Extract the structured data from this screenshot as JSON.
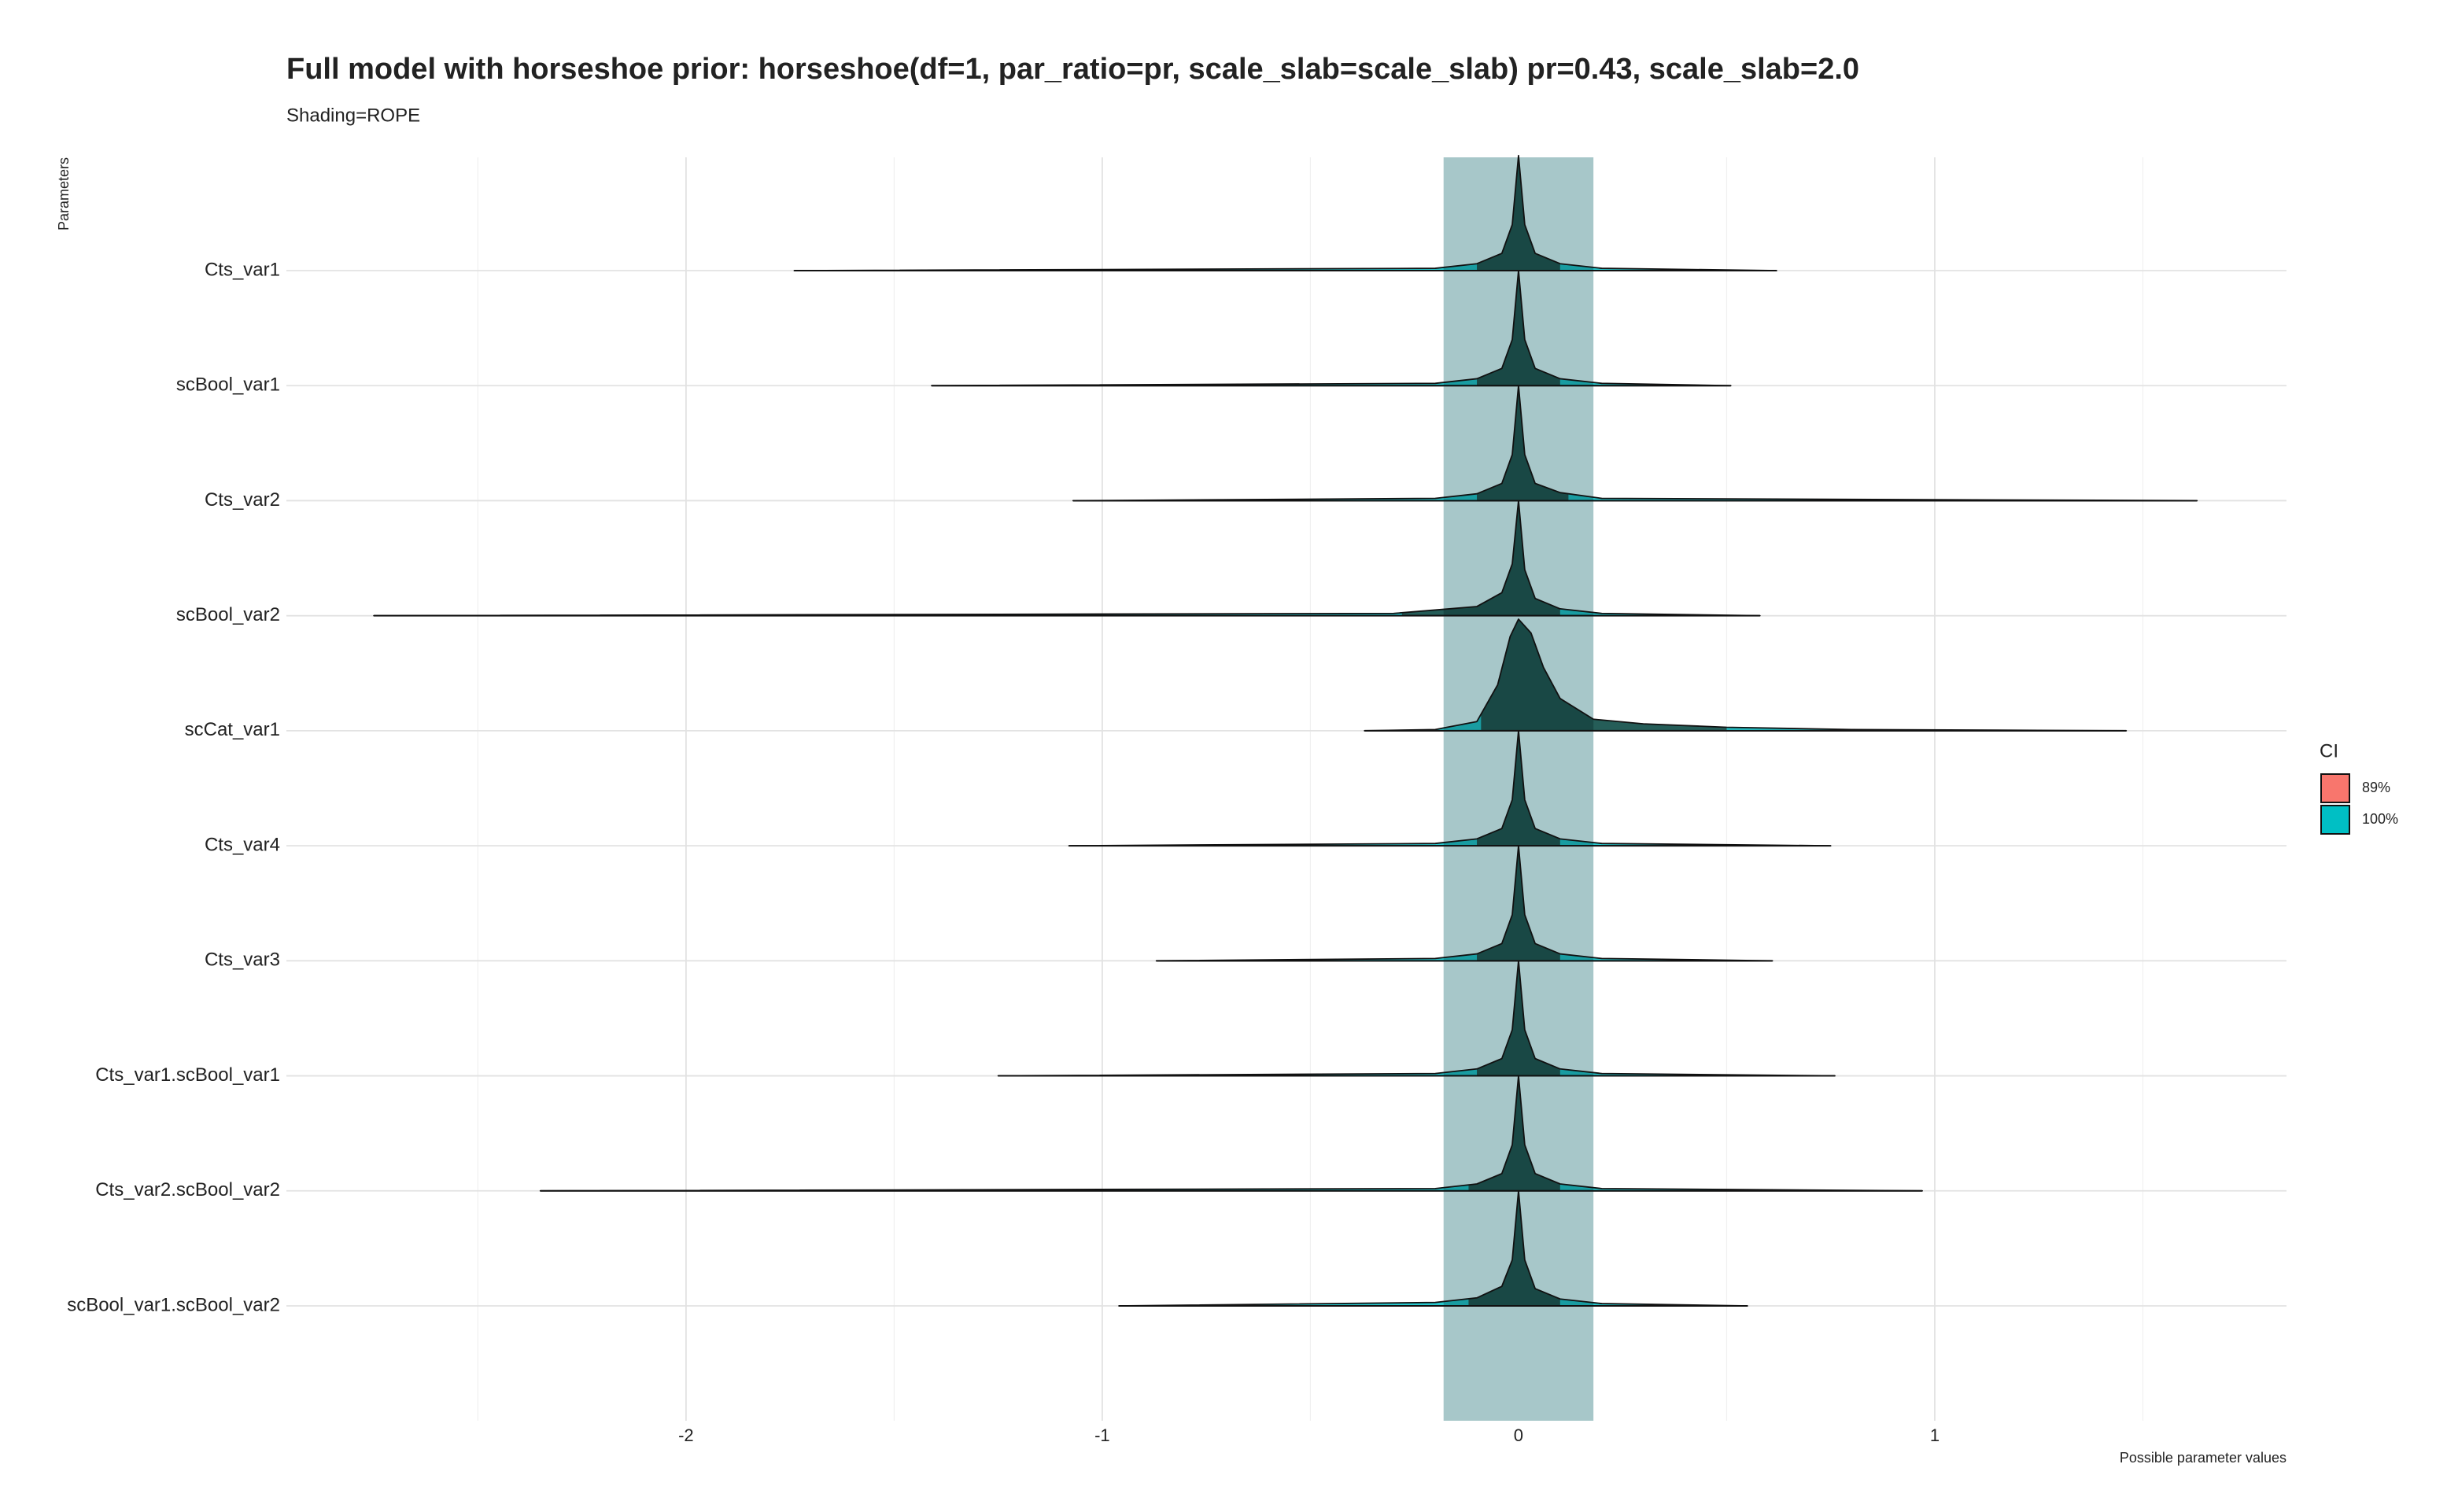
{
  "chart_data": {
    "type": "ridgeline",
    "title": "Full model with horseshoe prior: horseshoe(df=1, par_ratio=pr, scale_slab=scale_slab) pr=0.43, scale_slab=2.0",
    "subtitle": "Shading=ROPE",
    "y_label": "Parameters",
    "x_label": "Possible parameter values",
    "xlim": [
      -2.96,
      1.845
    ],
    "xticks": [
      -2,
      -1,
      0,
      1
    ],
    "minor_xticks": [
      -2.5,
      -1.5,
      -0.5,
      0.5,
      1.5
    ],
    "grid": true,
    "rope": [
      -0.18,
      0.18
    ],
    "rope_color": "#a7c7c9",
    "legend": {
      "title": "CI",
      "position": "right",
      "entries": [
        {
          "name": "89%",
          "color": "#F8766D"
        },
        {
          "name": "100%",
          "color": "#00BFC4"
        }
      ]
    },
    "series": [
      {
        "name": "Cts_var1",
        "min": -1.74,
        "max": 0.62,
        "ci89": [
          -0.1,
          0.1
        ],
        "density_x": [
          -0.2,
          -0.1,
          -0.04,
          -0.015,
          0,
          0.015,
          0.04,
          0.1,
          0.2
        ],
        "density": [
          0.02,
          0.06,
          0.15,
          0.4,
          1.0,
          0.4,
          0.15,
          0.06,
          0.02
        ]
      },
      {
        "name": "scBool_var1",
        "min": -1.41,
        "max": 0.51,
        "ci89": [
          -0.1,
          0.1
        ],
        "density_x": [
          -0.2,
          -0.1,
          -0.04,
          -0.015,
          0,
          0.015,
          0.04,
          0.1,
          0.2
        ],
        "density": [
          0.02,
          0.06,
          0.15,
          0.4,
          1.0,
          0.4,
          0.15,
          0.06,
          0.02
        ]
      },
      {
        "name": "Cts_var2",
        "min": -1.07,
        "max": 1.63,
        "ci89": [
          -0.1,
          0.12
        ],
        "density_x": [
          -0.2,
          -0.1,
          -0.04,
          -0.015,
          0,
          0.015,
          0.04,
          0.1,
          0.2
        ],
        "density": [
          0.02,
          0.06,
          0.15,
          0.4,
          1.0,
          0.4,
          0.15,
          0.07,
          0.02
        ]
      },
      {
        "name": "scBool_var2",
        "min": -2.75,
        "max": 0.58,
        "ci89": [
          -0.28,
          0.1
        ],
        "density_x": [
          -0.3,
          -0.1,
          -0.04,
          -0.015,
          0,
          0.015,
          0.04,
          0.1,
          0.2
        ],
        "density": [
          0.02,
          0.08,
          0.2,
          0.45,
          1.0,
          0.4,
          0.15,
          0.06,
          0.02
        ]
      },
      {
        "name": "scCat_var1",
        "min": -0.37,
        "max": 1.46,
        "ci89": [
          -0.09,
          0.5
        ],
        "density_x": [
          -0.2,
          -0.1,
          -0.05,
          -0.02,
          0,
          0.03,
          0.06,
          0.1,
          0.18,
          0.3,
          0.5,
          0.8
        ],
        "density": [
          0.01,
          0.08,
          0.4,
          0.82,
          0.97,
          0.85,
          0.55,
          0.28,
          0.1,
          0.06,
          0.03,
          0.01
        ]
      },
      {
        "name": "Cts_var4",
        "min": -1.08,
        "max": 0.75,
        "ci89": [
          -0.1,
          0.1
        ],
        "density_x": [
          -0.2,
          -0.1,
          -0.04,
          -0.015,
          0,
          0.015,
          0.04,
          0.1,
          0.2
        ],
        "density": [
          0.02,
          0.06,
          0.15,
          0.4,
          1.0,
          0.4,
          0.15,
          0.06,
          0.02
        ]
      },
      {
        "name": "Cts_var3",
        "min": -0.87,
        "max": 0.61,
        "ci89": [
          -0.1,
          0.1
        ],
        "density_x": [
          -0.2,
          -0.1,
          -0.04,
          -0.015,
          0,
          0.015,
          0.04,
          0.1,
          0.2
        ],
        "density": [
          0.02,
          0.06,
          0.15,
          0.4,
          1.0,
          0.4,
          0.15,
          0.06,
          0.02
        ]
      },
      {
        "name": "Cts_var1.scBool_var1",
        "min": -1.25,
        "max": 0.76,
        "ci89": [
          -0.1,
          0.1
        ],
        "density_x": [
          -0.2,
          -0.1,
          -0.04,
          -0.015,
          0,
          0.015,
          0.04,
          0.1,
          0.2
        ],
        "density": [
          0.02,
          0.06,
          0.15,
          0.4,
          1.0,
          0.4,
          0.15,
          0.06,
          0.02
        ]
      },
      {
        "name": "Cts_var2.scBool_var2",
        "min": -2.35,
        "max": 0.97,
        "ci89": [
          -0.12,
          0.1
        ],
        "density_x": [
          -0.2,
          -0.1,
          -0.04,
          -0.015,
          0,
          0.015,
          0.04,
          0.1,
          0.2
        ],
        "density": [
          0.02,
          0.06,
          0.15,
          0.4,
          1.0,
          0.4,
          0.15,
          0.06,
          0.02
        ]
      },
      {
        "name": "scBool_var1.scBool_var2",
        "min": -0.96,
        "max": 0.55,
        "ci89": [
          -0.12,
          0.1
        ],
        "density_x": [
          -0.2,
          -0.1,
          -0.04,
          -0.015,
          0,
          0.015,
          0.04,
          0.1,
          0.2
        ],
        "density": [
          0.03,
          0.07,
          0.17,
          0.4,
          1.0,
          0.4,
          0.15,
          0.06,
          0.02
        ]
      }
    ]
  }
}
